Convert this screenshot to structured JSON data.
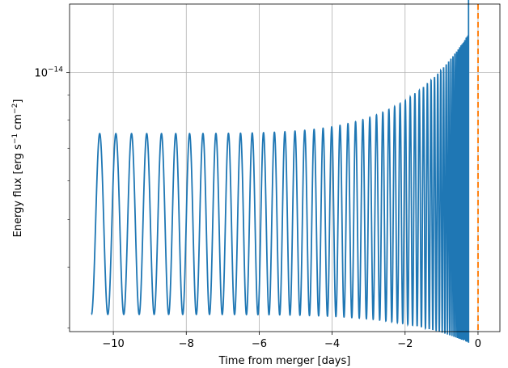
{
  "chart_data": {
    "type": "line",
    "title": "",
    "xlabel": "Time from merger [days]",
    "ylabel": "Energy flux [erg s",
    "ylabel_sup1": "−1",
    "ylabel_mid": " cm",
    "ylabel_sup2": "−2",
    "ylabel_end": "]",
    "xlim": [
      -11.2,
      0.6
    ],
    "ylim_log10": [
      -14.53,
      -13.86
    ],
    "y_scale": "log",
    "grid": true,
    "x_ticks": [
      -10,
      -8,
      -6,
      -4,
      -2,
      0
    ],
    "x_tick_labels": [
      "−10",
      "−8",
      "−6",
      "−4",
      "−2",
      "0"
    ],
    "y_major_tick": {
      "value": 1e-14,
      "base": "10",
      "exp": "−14"
    },
    "y_minor_ticks": [
      2e-15,
      3e-15,
      4e-15,
      5e-15,
      6e-15,
      7e-15,
      8e-15,
      9e-15,
      2e-14
    ],
    "series": [
      {
        "color": "#1f77b4",
        "description_values": {
          "t_start": -10.6,
          "t_end_oscillation": -0.26,
          "t_merger": 0.0,
          "oscillation_count": 68,
          "min_flux_start": 3.2e-15,
          "max_flux_start": 7.5e-15,
          "min_flux_end": 2.8e-15,
          "max_flux_end": 1.2e-14,
          "post_merger_flux": 1.9e-14
        }
      }
    ],
    "vline": {
      "x": 0,
      "color": "#ff7f0e",
      "style": "dashed"
    }
  }
}
